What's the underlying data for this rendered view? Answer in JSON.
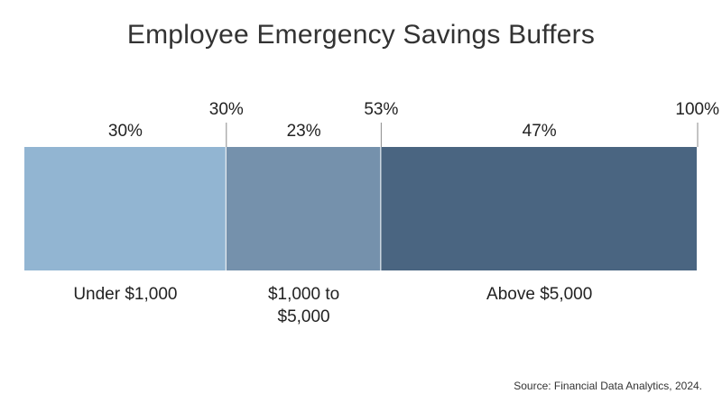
{
  "chart_data": {
    "type": "bar",
    "subtype": "stacked-100-horizontal",
    "title": "Employee Emergency Savings Buffers",
    "categories": [
      "Under $1,000",
      "$1,000 to $5,000",
      "Above $5,000"
    ],
    "category_lines": [
      [
        "Under $1,000"
      ],
      [
        "$1,000 to",
        "$5,000"
      ],
      [
        "Above $5,000"
      ]
    ],
    "values": [
      30,
      23,
      47
    ],
    "value_labels": [
      "30%",
      "23%",
      "47%"
    ],
    "cumulative_labels": [
      "30%",
      "53%",
      "100%"
    ],
    "colors": [
      "#92b5d2",
      "#7591ac",
      "#4a6581"
    ],
    "xlim": [
      0,
      100
    ],
    "grid": false,
    "legend": "none"
  },
  "source": "Source: Financial Data Analytics, 2024."
}
